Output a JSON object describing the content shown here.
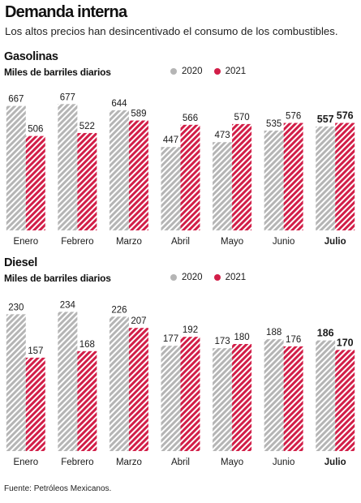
{
  "header": {
    "title": "Demanda interna",
    "subtitle": "Los altos precios han desincentivado el consumo de los combustibles."
  },
  "footer": {
    "source": "Fuente: Petróleos Mexicanos."
  },
  "colors": {
    "series_2020": "#b5b5b5",
    "series_2021": "#d21e48"
  },
  "chart_data": [
    {
      "type": "bar",
      "section": "Gasolinas",
      "ylabel": "Miles de barriles diarios",
      "categories": [
        "Enero",
        "Febrero",
        "Marzo",
        "Abril",
        "Mayo",
        "Junio",
        "Julio"
      ],
      "highlight_category": "Julio",
      "legend_position": "top-right",
      "grid": false,
      "ylim": [
        0,
        700
      ],
      "series": [
        {
          "name": "2020",
          "values": [
            667,
            677,
            644,
            447,
            473,
            535,
            557
          ]
        },
        {
          "name": "2021",
          "values": [
            506,
            522,
            589,
            566,
            570,
            576,
            576
          ]
        }
      ]
    },
    {
      "type": "bar",
      "section": "Diesel",
      "ylabel": "Miles de barriles diarios",
      "categories": [
        "Enero",
        "Febrero",
        "Marzo",
        "Abril",
        "Mayo",
        "Junio",
        "Julio"
      ],
      "highlight_category": "Julio",
      "legend_position": "top-right",
      "grid": false,
      "ylim": [
        0,
        240
      ],
      "series": [
        {
          "name": "2020",
          "values": [
            230,
            234,
            226,
            177,
            173,
            188,
            186
          ]
        },
        {
          "name": "2021",
          "values": [
            157,
            168,
            207,
            192,
            180,
            176,
            170
          ]
        }
      ]
    }
  ]
}
